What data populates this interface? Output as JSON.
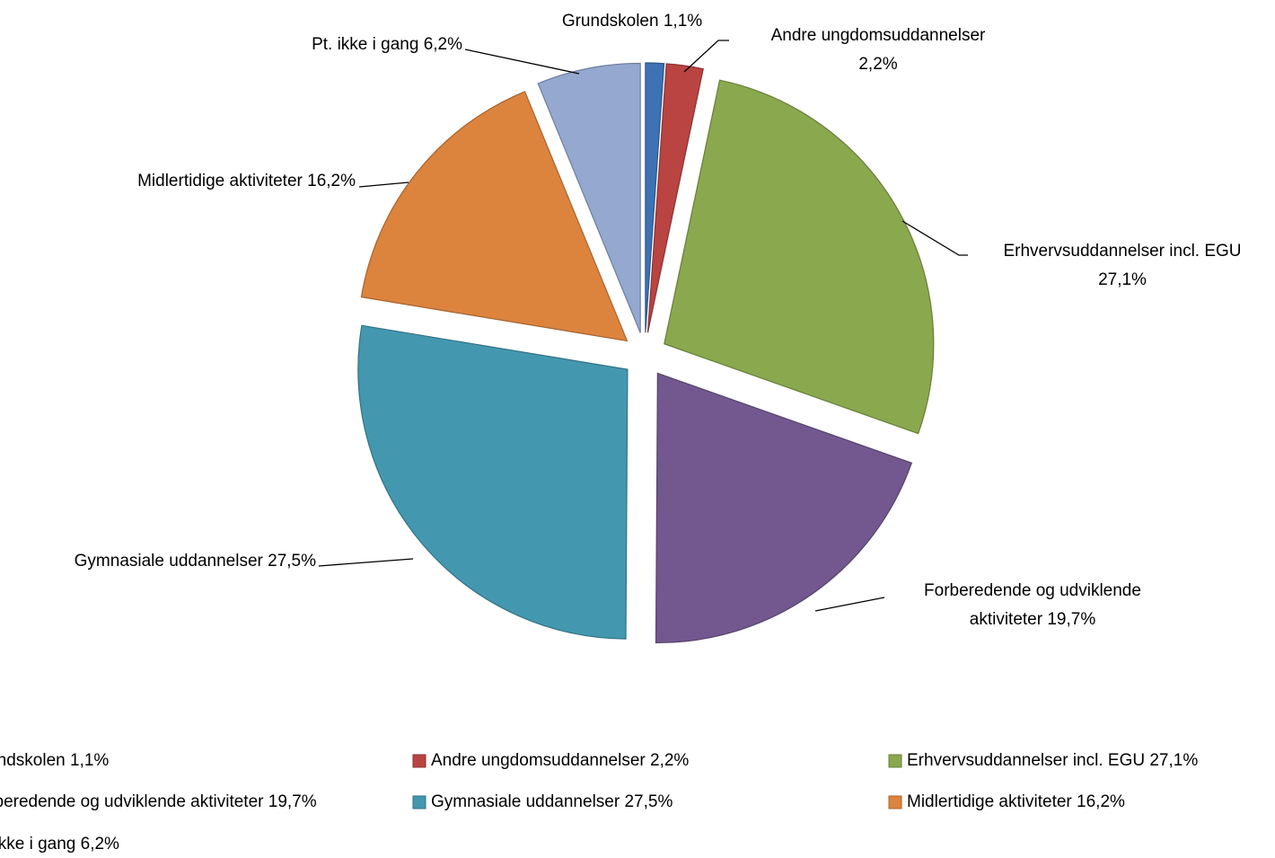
{
  "chart_data": {
    "type": "pie",
    "categories": [
      "Grundskolen",
      "Andre ungdomsuddannelser",
      "Erhvervsuddannelser incl. EGU",
      "Forberedende og udviklende aktiviteter",
      "Gymnasiale uddannelser",
      "Midlertidige aktiviteter",
      "Pt. ikke i gang"
    ],
    "values": [
      1.1,
      2.2,
      27.1,
      19.7,
      27.5,
      16.2,
      6.2
    ],
    "value_labels": [
      "1,1%",
      "2,2%",
      "27,1%",
      "19,7%",
      "27,5%",
      "16,2%",
      "6,2%"
    ],
    "colors": [
      "#3d72b4",
      "#b94441",
      "#8aa84e",
      "#72588f",
      "#4398b0",
      "#dc843e",
      "#94a8d0"
    ],
    "legend": "bottom"
  }
}
